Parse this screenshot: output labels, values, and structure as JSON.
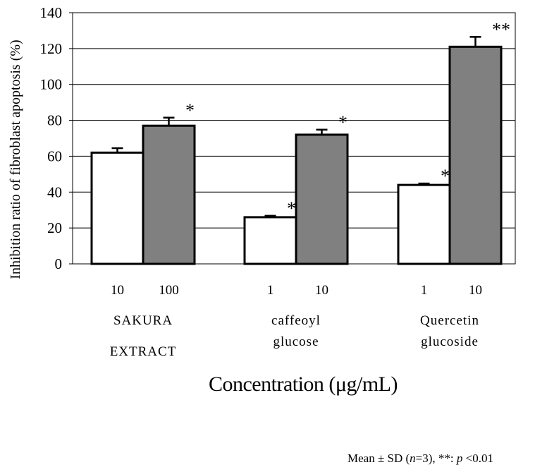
{
  "chart_data": {
    "type": "bar",
    "ylabel": "Inhibition ratio of fibroblast apoptosis (%)",
    "ylim": [
      0,
      140
    ],
    "yticks": [
      0,
      20,
      40,
      60,
      80,
      100,
      120,
      140
    ],
    "grid": true,
    "groups": [
      {
        "name_lines": [
          "SAKURA",
          "EXTRACT"
        ],
        "bars": [
          {
            "conc": "10",
            "value": 62,
            "error": 2.5,
            "sig": "",
            "fill": "#ffffff"
          },
          {
            "conc": "100",
            "value": 77,
            "error": 4.5,
            "sig": "*",
            "fill": "#808080"
          }
        ]
      },
      {
        "name_lines": [
          "caffeoyl",
          "glucose"
        ],
        "bars": [
          {
            "conc": "1",
            "value": 26,
            "error": 0.8,
            "sig": "*",
            "fill": "#ffffff"
          },
          {
            "conc": "10",
            "value": 72,
            "error": 2.8,
            "sig": "*",
            "fill": "#808080"
          }
        ]
      },
      {
        "name_lines": [
          "Quercetin",
          "glucoside"
        ],
        "bars": [
          {
            "conc": "1",
            "value": 44,
            "error": 0.8,
            "sig": "*",
            "fill": "#ffffff"
          },
          {
            "conc": "10",
            "value": 121,
            "error": 5.5,
            "sig": "**",
            "fill": "#808080"
          }
        ]
      }
    ],
    "xlabel": "Concentration (μg/mL)"
  },
  "footnote": {
    "prefix": "Mean ± SD (",
    "n_var": "n",
    "n_rest": "=3), **: ",
    "p_var": "p",
    "p_rest": " <0.01"
  }
}
